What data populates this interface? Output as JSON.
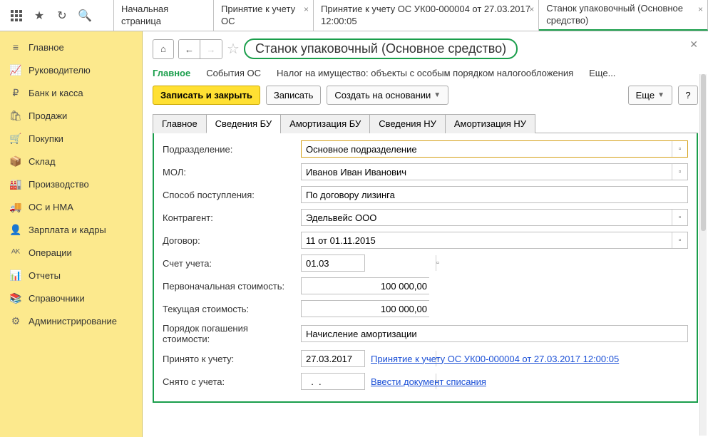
{
  "top_tabs": [
    {
      "label": "Начальная страница",
      "close": false
    },
    {
      "label": "Принятие к учету ОС",
      "close": true
    },
    {
      "label": "Принятие к учету ОС УК00-000004 от 27.03.2017 12:00:05",
      "close": true
    },
    {
      "label": "Станок упаковочный (Основное средство)",
      "close": true,
      "active": true
    }
  ],
  "sidebar": [
    {
      "icon": "≡",
      "label": "Главное"
    },
    {
      "icon": "📈",
      "label": "Руководителю"
    },
    {
      "icon": "₽",
      "label": "Банк и касса"
    },
    {
      "icon": "🛍",
      "label": "Продажи"
    },
    {
      "icon": "🛒",
      "label": "Покупки"
    },
    {
      "icon": "📦",
      "label": "Склад"
    },
    {
      "icon": "🏭",
      "label": "Производство"
    },
    {
      "icon": "🚚",
      "label": "ОС и НМА"
    },
    {
      "icon": "👤",
      "label": "Зарплата и кадры"
    },
    {
      "icon": "ᴬᴷ",
      "label": "Операции"
    },
    {
      "icon": "📊",
      "label": "Отчеты"
    },
    {
      "icon": "📚",
      "label": "Справочники"
    },
    {
      "icon": "⚙",
      "label": "Администрирование"
    }
  ],
  "page": {
    "title": "Станок упаковочный (Основное средство)",
    "subnav": {
      "active": "Главное",
      "items": [
        "События ОС",
        "Налог на имущество: объекты с особым порядком налогообложения",
        "Еще..."
      ]
    },
    "actions": {
      "save_close": "Записать и закрыть",
      "save": "Записать",
      "create_based": "Создать на основании",
      "more": "Еще",
      "help": "?"
    },
    "inner_tabs": [
      "Главное",
      "Сведения БУ",
      "Амортизация БУ",
      "Сведения НУ",
      "Амортизация НУ"
    ],
    "inner_active": "Сведения БУ",
    "form": {
      "dept_label": "Подразделение:",
      "dept_val": "Основное подразделение",
      "mol_label": "МОЛ:",
      "mol_val": "Иванов Иван Иванович",
      "receipt_label": "Способ поступления:",
      "receipt_val": "По договору лизинга",
      "counterparty_label": "Контрагент:",
      "counterparty_val": "Эдельвейс ООО",
      "contract_label": "Договор:",
      "contract_val": "11 от 01.11.2015",
      "account_label": "Счет учета:",
      "account_val": "01.03",
      "initial_cost_label": "Первоначальная стоимость:",
      "initial_cost_val": "100 000,00",
      "current_cost_label": "Текущая стоимость:",
      "current_cost_val": "100 000,00",
      "repay_label": "Порядок погашения стоимости:",
      "repay_val": "Начисление амортизации",
      "accepted_label": "Принято к учету:",
      "accepted_date": "27.03.2017",
      "accepted_link": "Принятие к учету ОС УК00-000004 от 27.03.2017 12:00:05",
      "removed_label": "Снято с учета:",
      "removed_date": "  .  .  ",
      "removed_link": "Ввести документ списания"
    }
  }
}
